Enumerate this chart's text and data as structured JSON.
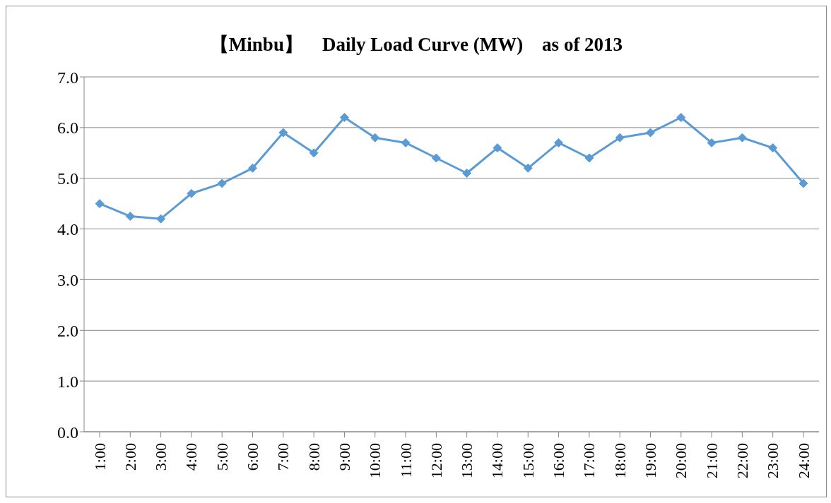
{
  "chart_data": {
    "type": "line",
    "title": "【Minbu】　Daily Load Curve (MW)　as of 2013",
    "categories": [
      "1:00",
      "2:00",
      "3:00",
      "4:00",
      "5:00",
      "6:00",
      "7:00",
      "8:00",
      "9:00",
      "10:00",
      "11:00",
      "12:00",
      "13:00",
      "14:00",
      "15:00",
      "16:00",
      "17:00",
      "18:00",
      "19:00",
      "20:00",
      "21:00",
      "22:00",
      "23:00",
      "24:00"
    ],
    "series": [
      {
        "color": "#5b9bd5",
        "values": [
          4.5,
          4.25,
          4.2,
          4.7,
          4.9,
          5.2,
          5.9,
          5.5,
          6.2,
          5.8,
          5.7,
          5.4,
          5.1,
          5.6,
          5.2,
          5.7,
          5.4,
          5.8,
          5.9,
          6.2,
          5.7,
          5.8,
          5.6,
          4.9
        ]
      }
    ],
    "ylim": [
      0,
      7
    ],
    "yticks": [
      {
        "value": 0,
        "label": "0.0"
      },
      {
        "value": 1,
        "label": "1.0"
      },
      {
        "value": 2,
        "label": "2.0"
      },
      {
        "value": 3,
        "label": "3.0"
      },
      {
        "value": 4,
        "label": "4.0"
      },
      {
        "value": 5,
        "label": "5.0"
      },
      {
        "value": 6,
        "label": "6.0"
      },
      {
        "value": 7,
        "label": "7.0"
      }
    ],
    "grid": "y",
    "marker": "diamond",
    "line_style": "solid"
  }
}
